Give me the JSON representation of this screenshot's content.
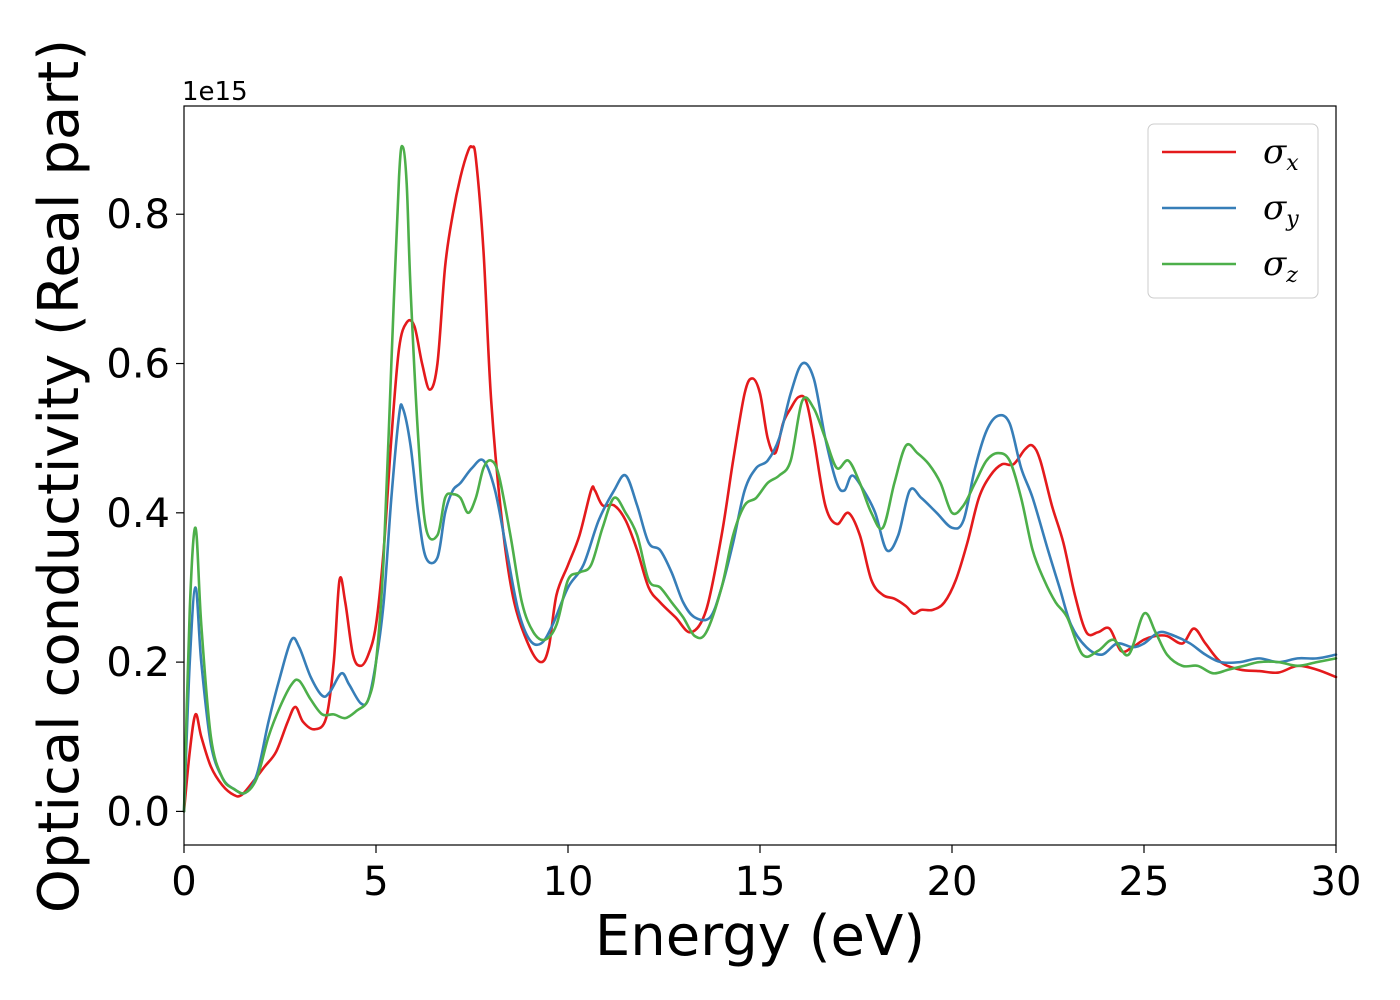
{
  "chart_data": {
    "type": "line",
    "xlabel": "Energy (eV)",
    "ylabel": "Optical conductivity (Real part)",
    "y_offset_label": "1e15",
    "xlim": [
      0,
      30
    ],
    "ylim": [
      -0.045,
      0.945
    ],
    "xticks": [
      0,
      5,
      10,
      15,
      20,
      25,
      30
    ],
    "xtick_labels": [
      "0",
      "5",
      "10",
      "15",
      "20",
      "25",
      "30"
    ],
    "yticks": [
      0.0,
      0.2,
      0.4,
      0.6,
      0.8
    ],
    "ytick_labels": [
      "0.0",
      "0.2",
      "0.4",
      "0.6",
      "0.8"
    ],
    "grid": false,
    "legend_position": "upper-right",
    "series": [
      {
        "name": "σx",
        "legend_base": "σ",
        "legend_sub": "x",
        "color": "#e41a1c",
        "x": [
          0,
          0.15,
          0.3,
          0.45,
          0.7,
          1.0,
          1.3,
          1.5,
          1.8,
          2.1,
          2.4,
          2.7,
          2.9,
          3.1,
          3.4,
          3.7,
          3.9,
          4.05,
          4.2,
          4.4,
          4.6,
          4.8,
          5.0,
          5.2,
          5.4,
          5.6,
          5.8,
          6.0,
          6.2,
          6.4,
          6.6,
          6.8,
          7.0,
          7.2,
          7.4,
          7.5,
          7.6,
          7.8,
          8.0,
          8.3,
          8.6,
          9.0,
          9.3,
          9.5,
          9.7,
          10.0,
          10.3,
          10.6,
          10.7,
          10.9,
          11.2,
          11.5,
          11.8,
          12.1,
          12.4,
          12.8,
          13.2,
          13.6,
          14.0,
          14.3,
          14.6,
          14.8,
          15.0,
          15.2,
          15.4,
          15.6,
          15.8,
          16.0,
          16.2,
          16.4,
          16.7,
          17.0,
          17.3,
          17.6,
          17.9,
          18.2,
          18.5,
          18.8,
          19.0,
          19.2,
          19.5,
          19.8,
          20.1,
          20.4,
          20.7,
          21.0,
          21.3,
          21.6,
          21.9,
          22.1,
          22.3,
          22.6,
          22.9,
          23.2,
          23.5,
          23.8,
          24.1,
          24.4,
          24.7,
          25.0,
          25.3,
          25.6,
          26.0,
          26.3,
          26.6,
          27.0,
          27.5,
          28.0,
          28.5,
          29.0,
          29.5,
          30.0
        ],
        "y": [
          0,
          0.08,
          0.13,
          0.1,
          0.06,
          0.035,
          0.022,
          0.022,
          0.04,
          0.06,
          0.08,
          0.12,
          0.14,
          0.12,
          0.11,
          0.125,
          0.2,
          0.31,
          0.28,
          0.21,
          0.195,
          0.21,
          0.25,
          0.35,
          0.5,
          0.62,
          0.655,
          0.65,
          0.6,
          0.565,
          0.6,
          0.73,
          0.8,
          0.85,
          0.885,
          0.89,
          0.875,
          0.75,
          0.55,
          0.38,
          0.28,
          0.22,
          0.2,
          0.22,
          0.29,
          0.33,
          0.37,
          0.43,
          0.43,
          0.41,
          0.41,
          0.39,
          0.35,
          0.3,
          0.28,
          0.26,
          0.24,
          0.27,
          0.37,
          0.47,
          0.56,
          0.58,
          0.56,
          0.5,
          0.48,
          0.52,
          0.54,
          0.555,
          0.55,
          0.5,
          0.41,
          0.385,
          0.4,
          0.37,
          0.31,
          0.29,
          0.285,
          0.275,
          0.265,
          0.27,
          0.27,
          0.28,
          0.31,
          0.36,
          0.42,
          0.45,
          0.465,
          0.465,
          0.485,
          0.49,
          0.47,
          0.41,
          0.36,
          0.29,
          0.24,
          0.24,
          0.245,
          0.215,
          0.22,
          0.23,
          0.235,
          0.235,
          0.225,
          0.245,
          0.225,
          0.2,
          0.19,
          0.188,
          0.186,
          0.195,
          0.19,
          0.18
        ]
      },
      {
        "name": "σy",
        "legend_base": "σ",
        "legend_sub": "y",
        "color": "#377eb8",
        "x": [
          0,
          0.15,
          0.3,
          0.45,
          0.7,
          1.0,
          1.3,
          1.6,
          1.9,
          2.2,
          2.5,
          2.8,
          3.0,
          3.3,
          3.6,
          3.8,
          4.1,
          4.3,
          4.6,
          4.8,
          5.0,
          5.2,
          5.4,
          5.6,
          5.7,
          5.9,
          6.1,
          6.3,
          6.6,
          6.8,
          7.0,
          7.2,
          7.5,
          7.8,
          8.1,
          8.4,
          8.7,
          9.0,
          9.3,
          9.6,
          10.0,
          10.4,
          10.8,
          11.2,
          11.5,
          11.8,
          12.1,
          12.4,
          12.7,
          13.0,
          13.3,
          13.7,
          14.0,
          14.3,
          14.6,
          14.9,
          15.2,
          15.5,
          15.8,
          16.1,
          16.4,
          16.7,
          17.0,
          17.2,
          17.4,
          17.7,
          18.0,
          18.3,
          18.6,
          18.9,
          19.2,
          19.6,
          20.0,
          20.3,
          20.6,
          20.9,
          21.2,
          21.5,
          21.8,
          22.1,
          22.5,
          22.8,
          23.1,
          23.5,
          23.9,
          24.3,
          24.7,
          25.0,
          25.4,
          25.8,
          26.2,
          26.6,
          27.0,
          27.5,
          28.0,
          28.5,
          29.0,
          29.5,
          30.0
        ],
        "y": [
          0,
          0.2,
          0.3,
          0.2,
          0.09,
          0.045,
          0.03,
          0.025,
          0.05,
          0.12,
          0.18,
          0.23,
          0.22,
          0.18,
          0.155,
          0.16,
          0.185,
          0.17,
          0.145,
          0.15,
          0.2,
          0.28,
          0.42,
          0.53,
          0.54,
          0.49,
          0.4,
          0.34,
          0.34,
          0.4,
          0.43,
          0.44,
          0.46,
          0.47,
          0.43,
          0.35,
          0.27,
          0.23,
          0.225,
          0.25,
          0.3,
          0.33,
          0.39,
          0.43,
          0.45,
          0.41,
          0.36,
          0.35,
          0.32,
          0.28,
          0.26,
          0.26,
          0.3,
          0.36,
          0.43,
          0.46,
          0.47,
          0.5,
          0.56,
          0.6,
          0.58,
          0.5,
          0.44,
          0.43,
          0.45,
          0.43,
          0.4,
          0.35,
          0.37,
          0.43,
          0.42,
          0.4,
          0.38,
          0.39,
          0.46,
          0.51,
          0.53,
          0.52,
          0.46,
          0.42,
          0.35,
          0.3,
          0.25,
          0.22,
          0.21,
          0.225,
          0.22,
          0.225,
          0.24,
          0.235,
          0.225,
          0.21,
          0.2,
          0.2,
          0.205,
          0.2,
          0.205,
          0.205,
          0.21
        ]
      },
      {
        "name": "σz",
        "legend_base": "σ",
        "legend_sub": "z",
        "color": "#4daf4a",
        "x": [
          0,
          0.15,
          0.3,
          0.45,
          0.7,
          1.0,
          1.3,
          1.6,
          1.9,
          2.2,
          2.5,
          2.8,
          3.0,
          3.3,
          3.6,
          3.9,
          4.2,
          4.5,
          4.8,
          5.0,
          5.2,
          5.4,
          5.6,
          5.7,
          5.8,
          5.9,
          6.1,
          6.3,
          6.6,
          6.8,
          7.0,
          7.2,
          7.4,
          7.6,
          7.8,
          8.0,
          8.2,
          8.5,
          8.8,
          9.1,
          9.4,
          9.7,
          10.0,
          10.3,
          10.6,
          10.9,
          11.2,
          11.5,
          11.8,
          12.1,
          12.4,
          12.7,
          13.0,
          13.3,
          13.6,
          14.0,
          14.3,
          14.6,
          14.9,
          15.2,
          15.5,
          15.8,
          16.1,
          16.4,
          16.7,
          17.0,
          17.3,
          17.6,
          17.9,
          18.2,
          18.5,
          18.8,
          19.1,
          19.4,
          19.7,
          20.0,
          20.3,
          20.6,
          20.9,
          21.2,
          21.5,
          21.8,
          22.1,
          22.4,
          22.7,
          23.0,
          23.4,
          23.8,
          24.2,
          24.6,
          25.0,
          25.3,
          25.6,
          26.0,
          26.4,
          26.8,
          27.2,
          27.6,
          28.0,
          28.5,
          29.0,
          29.5,
          30.0
        ],
        "y": [
          0,
          0.27,
          0.38,
          0.25,
          0.1,
          0.045,
          0.03,
          0.025,
          0.045,
          0.1,
          0.14,
          0.17,
          0.175,
          0.15,
          0.13,
          0.13,
          0.125,
          0.135,
          0.15,
          0.2,
          0.34,
          0.6,
          0.85,
          0.89,
          0.84,
          0.7,
          0.5,
          0.38,
          0.37,
          0.42,
          0.425,
          0.42,
          0.4,
          0.42,
          0.46,
          0.47,
          0.45,
          0.37,
          0.28,
          0.24,
          0.23,
          0.25,
          0.31,
          0.32,
          0.33,
          0.38,
          0.42,
          0.4,
          0.37,
          0.31,
          0.3,
          0.28,
          0.26,
          0.235,
          0.24,
          0.3,
          0.37,
          0.41,
          0.42,
          0.44,
          0.45,
          0.47,
          0.55,
          0.54,
          0.5,
          0.46,
          0.47,
          0.44,
          0.4,
          0.38,
          0.44,
          0.49,
          0.48,
          0.465,
          0.44,
          0.4,
          0.41,
          0.44,
          0.47,
          0.48,
          0.47,
          0.42,
          0.35,
          0.31,
          0.28,
          0.26,
          0.21,
          0.215,
          0.23,
          0.21,
          0.265,
          0.24,
          0.21,
          0.195,
          0.195,
          0.185,
          0.19,
          0.195,
          0.2,
          0.2,
          0.195,
          0.2,
          0.205
        ]
      }
    ]
  }
}
